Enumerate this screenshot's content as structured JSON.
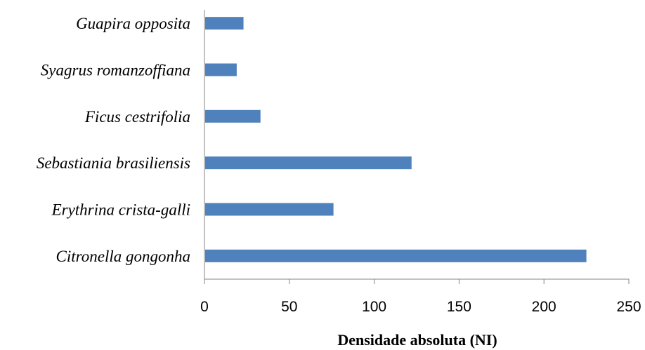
{
  "chart_data": {
    "type": "bar",
    "orientation": "horizontal",
    "categories": [
      "Citronella gongonha",
      "Erythrina crista-galli",
      "Sebastiania brasiliensis",
      "Ficus cestrifolia",
      "Syagrus romanzoffiana",
      "Guapira opposita"
    ],
    "values": [
      225,
      76,
      122,
      33,
      19,
      23
    ],
    "xlabel": "Densidade absoluta (NI)",
    "ylabel": "",
    "xlim": [
      0,
      250
    ],
    "xticks": [
      0,
      50,
      100,
      150,
      200,
      250
    ],
    "bar_color": "#4f81bd",
    "axis_color": "#868686",
    "grid": false,
    "legend": "none"
  }
}
